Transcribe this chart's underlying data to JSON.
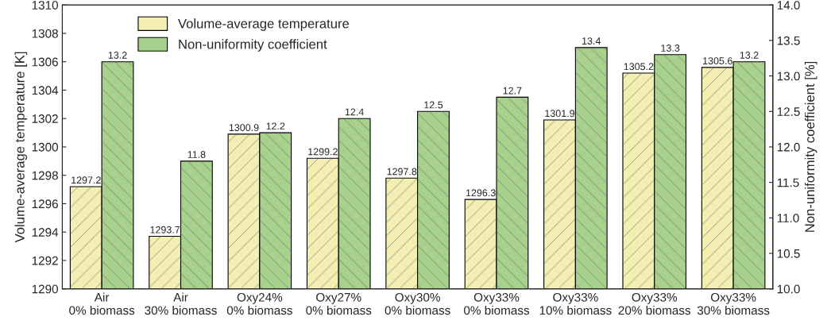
{
  "chart_data": {
    "type": "bar",
    "categories": [
      "Air\n0% biomass",
      "Air\n30% biomass",
      "Oxy24%\n0% biomass",
      "Oxy27%\n0% biomass",
      "Oxy30%\n0% biomass",
      "Oxy33%\n0% biomass",
      "Oxy33%\n10% biomass",
      "Oxy33%\n20% biomass",
      "Oxy33%\n30% biomass"
    ],
    "series": [
      {
        "name": "Volume-average temperature",
        "color": "#f3efb3",
        "values": [
          1297.2,
          1293.7,
          1300.9,
          1299.2,
          1297.8,
          1296.3,
          1301.9,
          1305.2,
          1305.6
        ]
      },
      {
        "name": "Non-uniformity coefficient",
        "color": "#a9d18e",
        "axis": "y2",
        "values": [
          13.2,
          11.8,
          12.2,
          12.4,
          12.5,
          12.7,
          13.4,
          13.3,
          13.2
        ]
      }
    ],
    "ylabel": "Volume-average temperature [K]",
    "y2label": "Non-uniformity coefficient [%]",
    "ylim": [
      1290,
      1310
    ],
    "yticks": [
      1290,
      1292,
      1294,
      1296,
      1298,
      1300,
      1302,
      1304,
      1306,
      1308,
      1310
    ],
    "y2lim": [
      10.0,
      14.0
    ],
    "y2ticks": [
      {
        "value": 10.0,
        "label": "10.0"
      },
      10.5,
      {
        "value": 11.0,
        "label": "11.0"
      },
      11.5,
      {
        "value": 12.0,
        "label": "12.0"
      },
      12.5,
      {
        "value": 13.0,
        "label": "13.0"
      },
      13.5,
      {
        "value": 14.0,
        "label": "14.0"
      }
    ],
    "data_labels": true,
    "legend": "top left",
    "grid": false
  }
}
